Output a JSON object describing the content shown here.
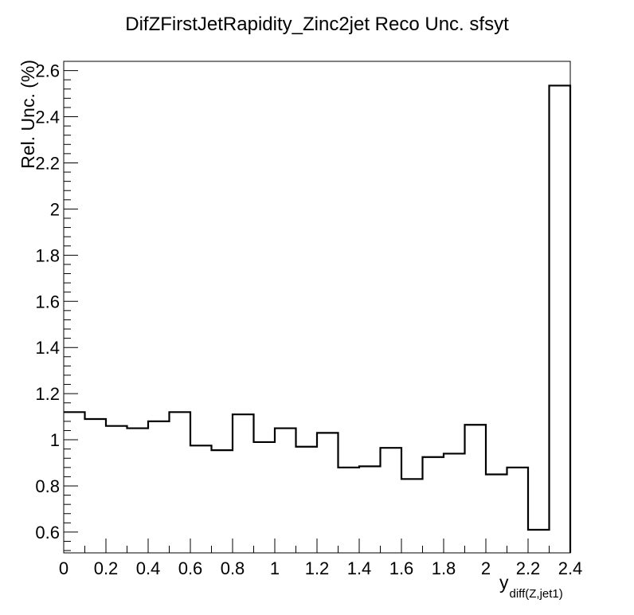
{
  "chart_data": {
    "type": "histogram-step",
    "title": "DifZFirstJetRapidity_Zinc2jet Reco Unc. sfsyt",
    "xlabel_main": "y",
    "xlabel_sub": "diff(Z,jet1)",
    "ylabel": "Rel. Unc. (%)",
    "xlim": [
      0,
      2.4
    ],
    "ylim": [
      0.51,
      2.64
    ],
    "x_ticks": [
      "0",
      "0.2",
      "0.4",
      "0.6",
      "0.8",
      "1",
      "1.2",
      "1.4",
      "1.6",
      "1.8",
      "2",
      "2.2",
      "2.4"
    ],
    "y_ticks": [
      "0.6",
      "0.8",
      "1",
      "1.2",
      "1.4",
      "1.6",
      "1.8",
      "2",
      "2.2",
      "2.4",
      "2.6"
    ],
    "bin_edges": [
      0,
      0.1,
      0.2,
      0.3,
      0.4,
      0.5,
      0.6,
      0.7,
      0.8,
      0.9,
      1.0,
      1.1,
      1.2,
      1.3,
      1.4,
      1.5,
      1.6,
      1.7,
      1.8,
      1.9,
      2.0,
      2.1,
      2.2,
      2.3,
      2.4
    ],
    "values": [
      1.12,
      1.09,
      1.06,
      1.05,
      1.08,
      1.12,
      0.975,
      0.955,
      1.11,
      0.99,
      1.05,
      0.97,
      1.03,
      0.88,
      0.885,
      0.965,
      0.83,
      0.925,
      0.94,
      1.065,
      0.85,
      0.88,
      0.61,
      2.535
    ],
    "grid": false,
    "legend": "none",
    "line_color": "#000000"
  }
}
